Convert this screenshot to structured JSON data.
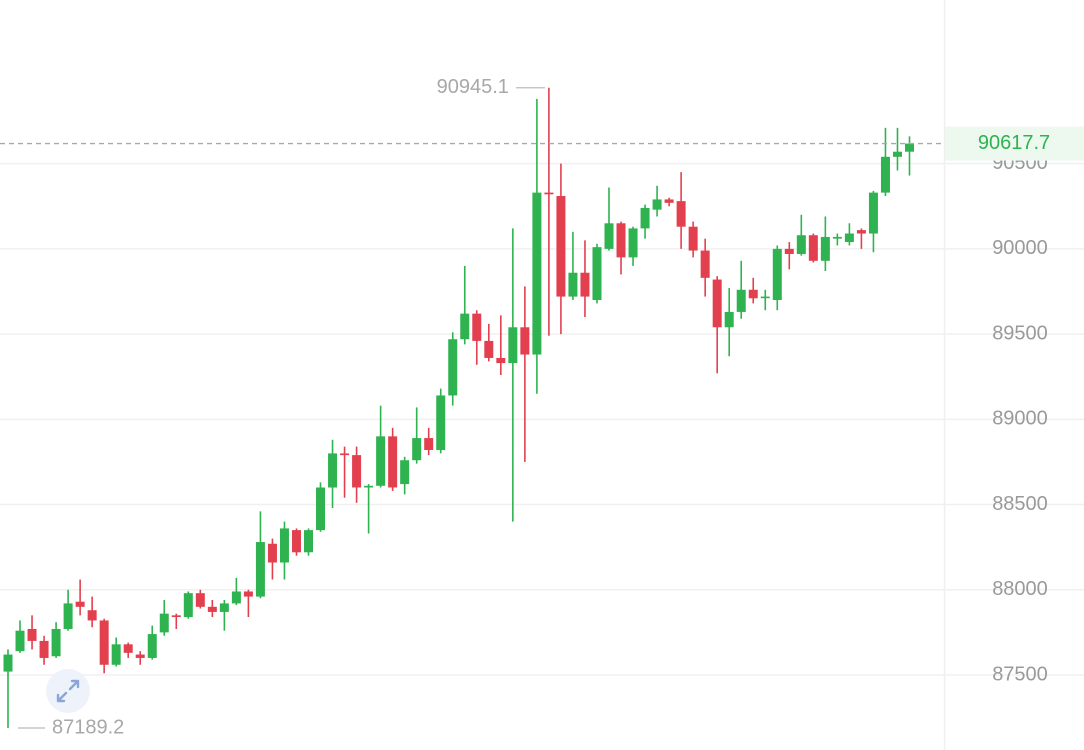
{
  "chart_data": {
    "type": "candlestick",
    "up_color": "#2eb350",
    "down_color": "#e2404f",
    "ylim": [
      87060,
      91460
    ],
    "yticks": [
      87500,
      88000,
      88500,
      89000,
      89500,
      90000,
      90500
    ],
    "grid": true,
    "open": [
      87520,
      87640,
      87770,
      87700,
      87610,
      87770,
      87930,
      87880,
      87820,
      87560,
      87680,
      87620,
      87600,
      87750,
      87850,
      87840,
      87980,
      87900,
      87870,
      87920,
      87990,
      87960,
      88270,
      88160,
      88350,
      88220,
      88350,
      88600,
      88800,
      88790,
      88600,
      88610,
      88900,
      88620,
      88760,
      88890,
      88820,
      89140,
      89470,
      89620,
      89460,
      89360,
      89330,
      89540,
      89380,
      90330,
      90310,
      89720,
      89860,
      89700,
      90000,
      90150,
      89950,
      90120,
      90230,
      90290,
      90280,
      90130,
      89990,
      89820,
      89540,
      89630,
      89760,
      89720,
      89700,
      90000,
      89970,
      90080,
      89930,
      90060,
      90040,
      90110,
      90090,
      90330,
      90540,
      90570
    ],
    "high": [
      87650,
      87820,
      87850,
      87730,
      87810,
      88000,
      88060,
      87960,
      87830,
      87720,
      87690,
      87640,
      87790,
      87940,
      87860,
      87990,
      88000,
      87940,
      87940,
      88070,
      88000,
      88460,
      88300,
      88400,
      88360,
      88360,
      88630,
      88880,
      88840,
      88840,
      88620,
      89080,
      88950,
      88780,
      89070,
      88950,
      89180,
      89510,
      89900,
      89640,
      89560,
      89610,
      90120,
      89780,
      90880,
      90945.1,
      90500,
      90100,
      90050,
      90030,
      90360,
      90160,
      90130,
      90260,
      90370,
      90300,
      90450,
      90160,
      90060,
      89840,
      89770,
      89930,
      89830,
      89760,
      90020,
      90040,
      90200,
      90090,
      90190,
      90090,
      90150,
      90120,
      90340,
      90710,
      90710,
      90660
    ],
    "low": [
      87189.2,
      87630,
      87650,
      87560,
      87600,
      87760,
      87850,
      87780,
      87510,
      87550,
      87600,
      87560,
      87590,
      87730,
      87770,
      87830,
      87890,
      87840,
      87760,
      87910,
      87840,
      87950,
      88060,
      88060,
      88200,
      88200,
      88340,
      88480,
      88540,
      88510,
      88330,
      88600,
      88580,
      88560,
      88740,
      88790,
      88800,
      89080,
      89440,
      89320,
      89340,
      89260,
      88400,
      88750,
      89150,
      89490,
      89500,
      89700,
      89600,
      89680,
      89990,
      89850,
      89900,
      90060,
      90190,
      90250,
      90000,
      89950,
      89720,
      89270,
      89370,
      89590,
      89680,
      89640,
      89640,
      89880,
      89960,
      89920,
      89870,
      90020,
      90020,
      90000,
      89980,
      90310,
      90460,
      90430
    ],
    "close": [
      87620,
      87760,
      87700,
      87600,
      87770,
      87920,
      87900,
      87820,
      87560,
      87680,
      87630,
      87600,
      87740,
      87860,
      87840,
      87980,
      87900,
      87870,
      87920,
      87990,
      87960,
      88280,
      88160,
      88360,
      88220,
      88350,
      88600,
      88800,
      88790,
      88600,
      88610,
      88900,
      88600,
      88760,
      88890,
      88820,
      89140,
      89470,
      89620,
      89460,
      89360,
      89330,
      89540,
      89380,
      90330,
      90320,
      89720,
      89860,
      89720,
      90010,
      90150,
      89950,
      90120,
      90240,
      90290,
      90270,
      90130,
      89990,
      89830,
      89540,
      89630,
      89760,
      89710,
      89720,
      90000,
      89970,
      90080,
      89930,
      90070,
      90070,
      90090,
      90090,
      90330,
      90540,
      90570,
      90617.7
    ]
  }
}
